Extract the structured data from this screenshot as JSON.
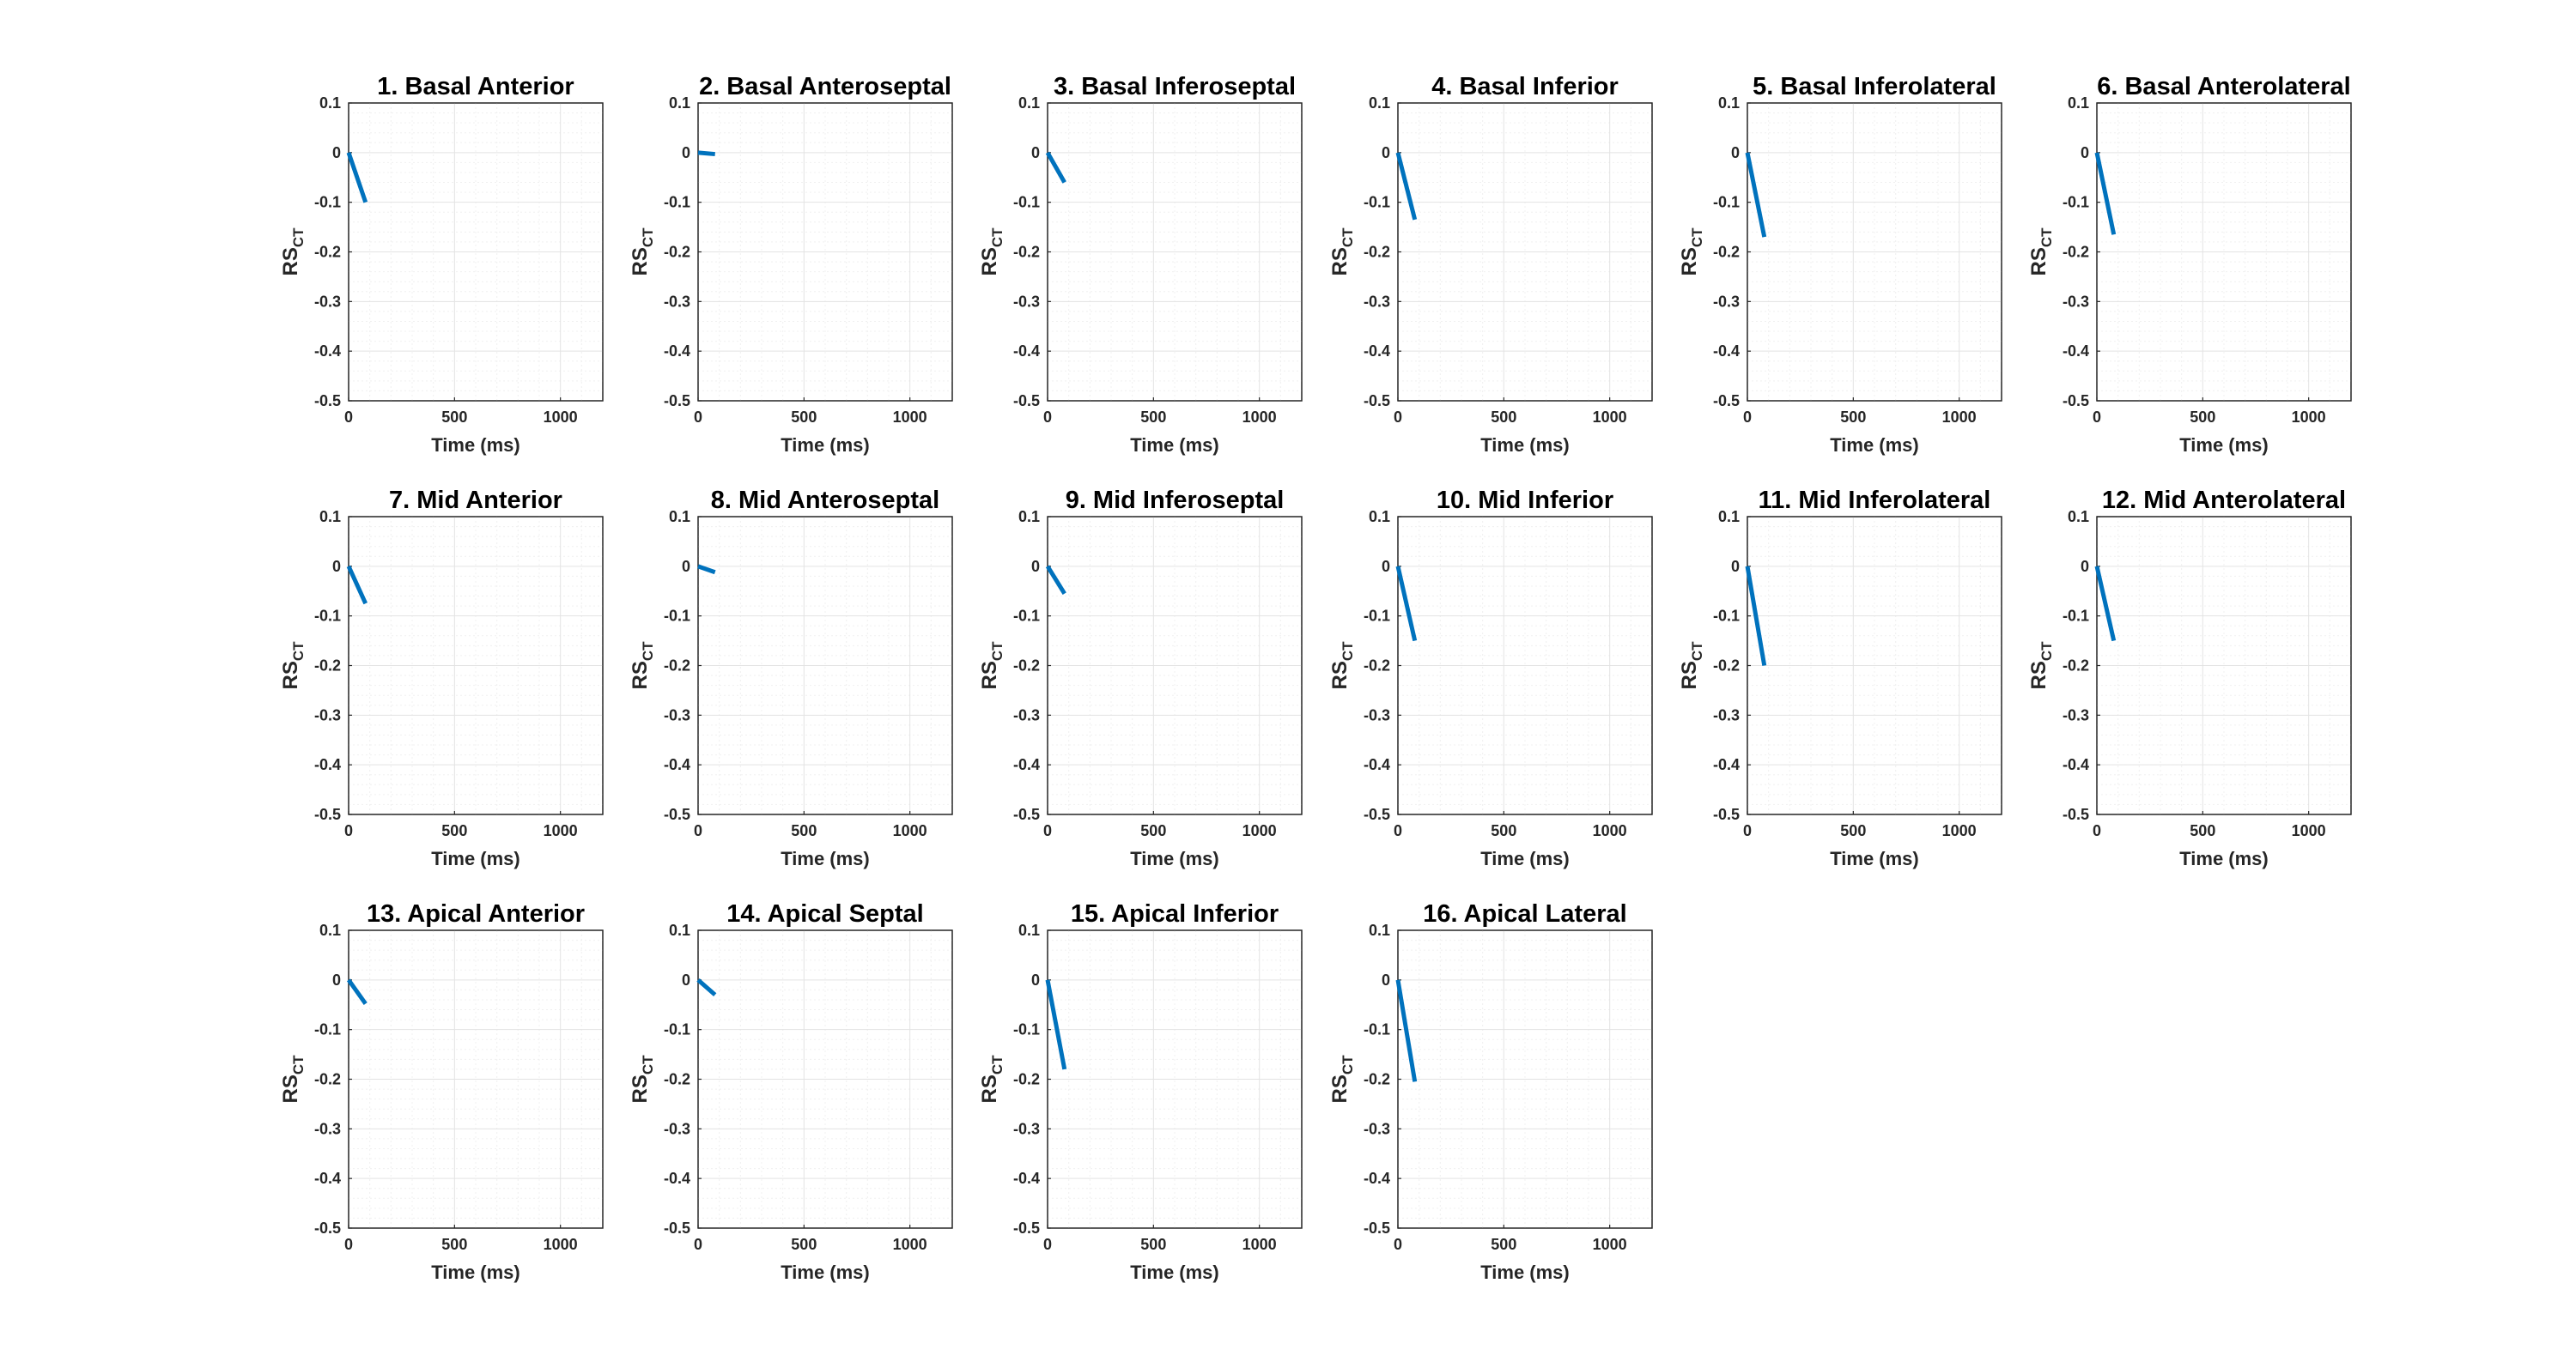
{
  "figure": {
    "series_color": "#0072BD"
  },
  "chart_data": [
    {
      "type": "line",
      "title": "1. Basal Anterior",
      "xlabel": "Time (ms)",
      "ylabel": "RS",
      "ylabel_sub": "CT",
      "xlim": [
        0,
        1200
      ],
      "ylim": [
        -0.5,
        0.1
      ],
      "xticks": [
        "0",
        "500",
        "1000"
      ],
      "yticks": [
        "0.1",
        "0",
        "-0.1",
        "-0.2",
        "-0.3",
        "-0.4",
        "-0.5"
      ],
      "grid": true,
      "series": [
        {
          "x": [
            0,
            80
          ],
          "y": [
            0,
            -0.1
          ]
        }
      ]
    },
    {
      "type": "line",
      "title": "2. Basal Anteroseptal",
      "xlabel": "Time (ms)",
      "ylabel": "RS",
      "ylabel_sub": "CT",
      "xlim": [
        0,
        1200
      ],
      "ylim": [
        -0.5,
        0.1
      ],
      "xticks": [
        "0",
        "500",
        "1000"
      ],
      "yticks": [
        "0.1",
        "0",
        "-0.1",
        "-0.2",
        "-0.3",
        "-0.4",
        "-0.5"
      ],
      "grid": true,
      "series": [
        {
          "x": [
            0,
            80
          ],
          "y": [
            0,
            -0.003
          ]
        }
      ]
    },
    {
      "type": "line",
      "title": "3. Basal Inferoseptal",
      "xlabel": "Time (ms)",
      "ylabel": "RS",
      "ylabel_sub": "CT",
      "xlim": [
        0,
        1200
      ],
      "ylim": [
        -0.5,
        0.1
      ],
      "xticks": [
        "0",
        "500",
        "1000"
      ],
      "yticks": [
        "0.1",
        "0",
        "-0.1",
        "-0.2",
        "-0.3",
        "-0.4",
        "-0.5"
      ],
      "grid": true,
      "series": [
        {
          "x": [
            0,
            80
          ],
          "y": [
            0,
            -0.06
          ]
        }
      ]
    },
    {
      "type": "line",
      "title": "4. Basal Inferior",
      "xlabel": "Time (ms)",
      "ylabel": "RS",
      "ylabel_sub": "CT",
      "xlim": [
        0,
        1200
      ],
      "ylim": [
        -0.5,
        0.1
      ],
      "xticks": [
        "0",
        "500",
        "1000"
      ],
      "yticks": [
        "0.1",
        "0",
        "-0.1",
        "-0.2",
        "-0.3",
        "-0.4",
        "-0.5"
      ],
      "grid": true,
      "series": [
        {
          "x": [
            0,
            80
          ],
          "y": [
            0,
            -0.135
          ]
        }
      ]
    },
    {
      "type": "line",
      "title": "5. Basal Inferolateral",
      "xlabel": "Time (ms)",
      "ylabel": "RS",
      "ylabel_sub": "CT",
      "xlim": [
        0,
        1200
      ],
      "ylim": [
        -0.5,
        0.1
      ],
      "xticks": [
        "0",
        "500",
        "1000"
      ],
      "yticks": [
        "0.1",
        "0",
        "-0.1",
        "-0.2",
        "-0.3",
        "-0.4",
        "-0.5"
      ],
      "grid": true,
      "series": [
        {
          "x": [
            0,
            80
          ],
          "y": [
            0,
            -0.17
          ]
        }
      ]
    },
    {
      "type": "line",
      "title": "6. Basal Anterolateral",
      "xlabel": "Time (ms)",
      "ylabel": "RS",
      "ylabel_sub": "CT",
      "xlim": [
        0,
        1200
      ],
      "ylim": [
        -0.5,
        0.1
      ],
      "xticks": [
        "0",
        "500",
        "1000"
      ],
      "yticks": [
        "0.1",
        "0",
        "-0.1",
        "-0.2",
        "-0.3",
        "-0.4",
        "-0.5"
      ],
      "grid": true,
      "series": [
        {
          "x": [
            0,
            80
          ],
          "y": [
            0,
            -0.165
          ]
        }
      ]
    },
    {
      "type": "line",
      "title": "7. Mid Anterior",
      "xlabel": "Time (ms)",
      "ylabel": "RS",
      "ylabel_sub": "CT",
      "xlim": [
        0,
        1200
      ],
      "ylim": [
        -0.5,
        0.1
      ],
      "xticks": [
        "0",
        "500",
        "1000"
      ],
      "yticks": [
        "0.1",
        "0",
        "-0.1",
        "-0.2",
        "-0.3",
        "-0.4",
        "-0.5"
      ],
      "grid": true,
      "series": [
        {
          "x": [
            0,
            80
          ],
          "y": [
            0,
            -0.075
          ]
        }
      ]
    },
    {
      "type": "line",
      "title": "8. Mid Anteroseptal",
      "xlabel": "Time (ms)",
      "ylabel": "RS",
      "ylabel_sub": "CT",
      "xlim": [
        0,
        1200
      ],
      "ylim": [
        -0.5,
        0.1
      ],
      "xticks": [
        "0",
        "500",
        "1000"
      ],
      "yticks": [
        "0.1",
        "0",
        "-0.1",
        "-0.2",
        "-0.3",
        "-0.4",
        "-0.5"
      ],
      "grid": true,
      "series": [
        {
          "x": [
            0,
            80
          ],
          "y": [
            0,
            -0.012
          ]
        }
      ]
    },
    {
      "type": "line",
      "title": "9. Mid Inferoseptal",
      "xlabel": "Time (ms)",
      "ylabel": "RS",
      "ylabel_sub": "CT",
      "xlim": [
        0,
        1200
      ],
      "ylim": [
        -0.5,
        0.1
      ],
      "xticks": [
        "0",
        "500",
        "1000"
      ],
      "yticks": [
        "0.1",
        "0",
        "-0.1",
        "-0.2",
        "-0.3",
        "-0.4",
        "-0.5"
      ],
      "grid": true,
      "series": [
        {
          "x": [
            0,
            80
          ],
          "y": [
            0,
            -0.055
          ]
        }
      ]
    },
    {
      "type": "line",
      "title": "10. Mid Inferior",
      "xlabel": "Time (ms)",
      "ylabel": "RS",
      "ylabel_sub": "CT",
      "xlim": [
        0,
        1200
      ],
      "ylim": [
        -0.5,
        0.1
      ],
      "xticks": [
        "0",
        "500",
        "1000"
      ],
      "yticks": [
        "0.1",
        "0",
        "-0.1",
        "-0.2",
        "-0.3",
        "-0.4",
        "-0.5"
      ],
      "grid": true,
      "series": [
        {
          "x": [
            0,
            80
          ],
          "y": [
            0,
            -0.15
          ]
        }
      ]
    },
    {
      "type": "line",
      "title": "11. Mid Inferolateral",
      "xlabel": "Time (ms)",
      "ylabel": "RS",
      "ylabel_sub": "CT",
      "xlim": [
        0,
        1200
      ],
      "ylim": [
        -0.5,
        0.1
      ],
      "xticks": [
        "0",
        "500",
        "1000"
      ],
      "yticks": [
        "0.1",
        "0",
        "-0.1",
        "-0.2",
        "-0.3",
        "-0.4",
        "-0.5"
      ],
      "grid": true,
      "series": [
        {
          "x": [
            0,
            80
          ],
          "y": [
            0,
            -0.2
          ]
        }
      ]
    },
    {
      "type": "line",
      "title": "12. Mid Anterolateral",
      "xlabel": "Time (ms)",
      "ylabel": "RS",
      "ylabel_sub": "CT",
      "xlim": [
        0,
        1200
      ],
      "ylim": [
        -0.5,
        0.1
      ],
      "xticks": [
        "0",
        "500",
        "1000"
      ],
      "yticks": [
        "0.1",
        "0",
        "-0.1",
        "-0.2",
        "-0.3",
        "-0.4",
        "-0.5"
      ],
      "grid": true,
      "series": [
        {
          "x": [
            0,
            80
          ],
          "y": [
            0,
            -0.15
          ]
        }
      ]
    },
    {
      "type": "line",
      "title": "13. Apical Anterior",
      "xlabel": "Time (ms)",
      "ylabel": "RS",
      "ylabel_sub": "CT",
      "xlim": [
        0,
        1200
      ],
      "ylim": [
        -0.5,
        0.1
      ],
      "xticks": [
        "0",
        "500",
        "1000"
      ],
      "yticks": [
        "0.1",
        "0",
        "-0.1",
        "-0.2",
        "-0.3",
        "-0.4",
        "-0.5"
      ],
      "grid": true,
      "series": [
        {
          "x": [
            0,
            80
          ],
          "y": [
            0,
            -0.048
          ]
        }
      ]
    },
    {
      "type": "line",
      "title": "14. Apical Septal",
      "xlabel": "Time (ms)",
      "ylabel": "RS",
      "ylabel_sub": "CT",
      "xlim": [
        0,
        1200
      ],
      "ylim": [
        -0.5,
        0.1
      ],
      "xticks": [
        "0",
        "500",
        "1000"
      ],
      "yticks": [
        "0.1",
        "0",
        "-0.1",
        "-0.2",
        "-0.3",
        "-0.4",
        "-0.5"
      ],
      "grid": true,
      "series": [
        {
          "x": [
            0,
            80
          ],
          "y": [
            0,
            -0.03
          ]
        }
      ]
    },
    {
      "type": "line",
      "title": "15. Apical Inferior",
      "xlabel": "Time (ms)",
      "ylabel": "RS",
      "ylabel_sub": "CT",
      "xlim": [
        0,
        1200
      ],
      "ylim": [
        -0.5,
        0.1
      ],
      "xticks": [
        "0",
        "500",
        "1000"
      ],
      "yticks": [
        "0.1",
        "0",
        "-0.1",
        "-0.2",
        "-0.3",
        "-0.4",
        "-0.5"
      ],
      "grid": true,
      "series": [
        {
          "x": [
            0,
            80
          ],
          "y": [
            0,
            -0.18
          ]
        }
      ]
    },
    {
      "type": "line",
      "title": "16. Apical Lateral",
      "xlabel": "Time (ms)",
      "ylabel": "RS",
      "ylabel_sub": "CT",
      "xlim": [
        0,
        1200
      ],
      "ylim": [
        -0.5,
        0.1
      ],
      "xticks": [
        "0",
        "500",
        "1000"
      ],
      "yticks": [
        "0.1",
        "0",
        "-0.1",
        "-0.2",
        "-0.3",
        "-0.4",
        "-0.5"
      ],
      "grid": true,
      "series": [
        {
          "x": [
            0,
            80
          ],
          "y": [
            0,
            -0.205
          ]
        }
      ]
    }
  ]
}
